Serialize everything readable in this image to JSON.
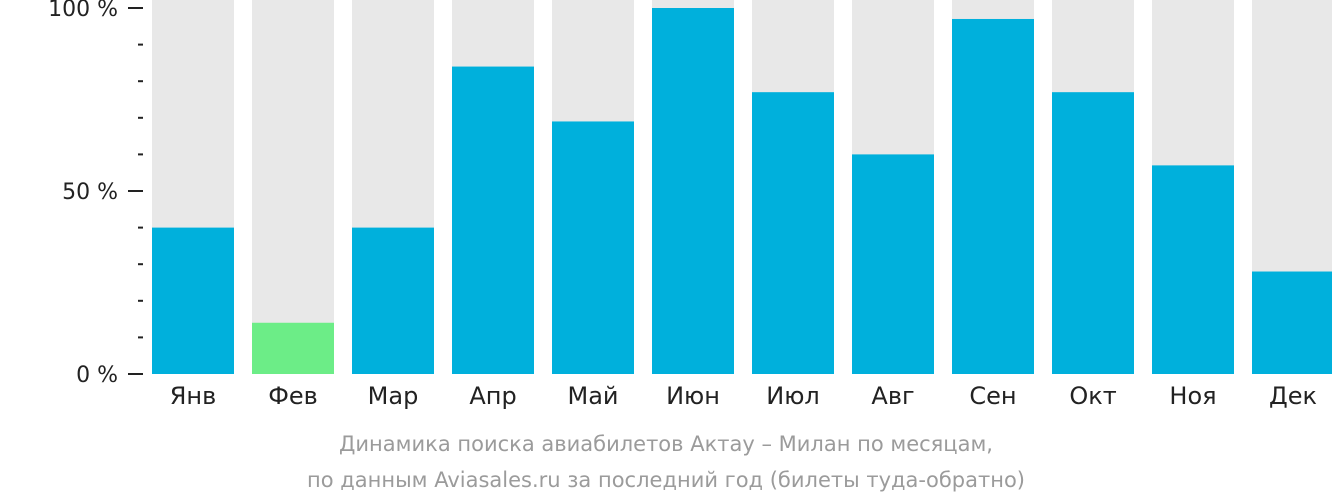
{
  "chart_data": {
    "type": "bar",
    "categories": [
      "Янв",
      "Фев",
      "Мар",
      "Апр",
      "Май",
      "Июн",
      "Июл",
      "Авг",
      "Сен",
      "Окт",
      "Ноя",
      "Дек"
    ],
    "values": [
      40,
      14,
      40,
      84,
      69,
      100,
      77,
      60,
      97,
      77,
      57,
      28
    ],
    "highlight_index": 1,
    "ylim": [
      0,
      100
    ],
    "y_ticks": [
      "0 %",
      "50 %",
      "100 %"
    ],
    "caption_line1": "Динамика поиска авиабилетов Актау – Милан по месяцам,",
    "caption_line2": "по данным Aviasales.ru за последний год (билеты туда-обратно)",
    "colors": {
      "bar": "#00b0dc",
      "highlight": "#6ced87",
      "background_bar": "#e8e8e8",
      "axis": "#222222"
    }
  }
}
